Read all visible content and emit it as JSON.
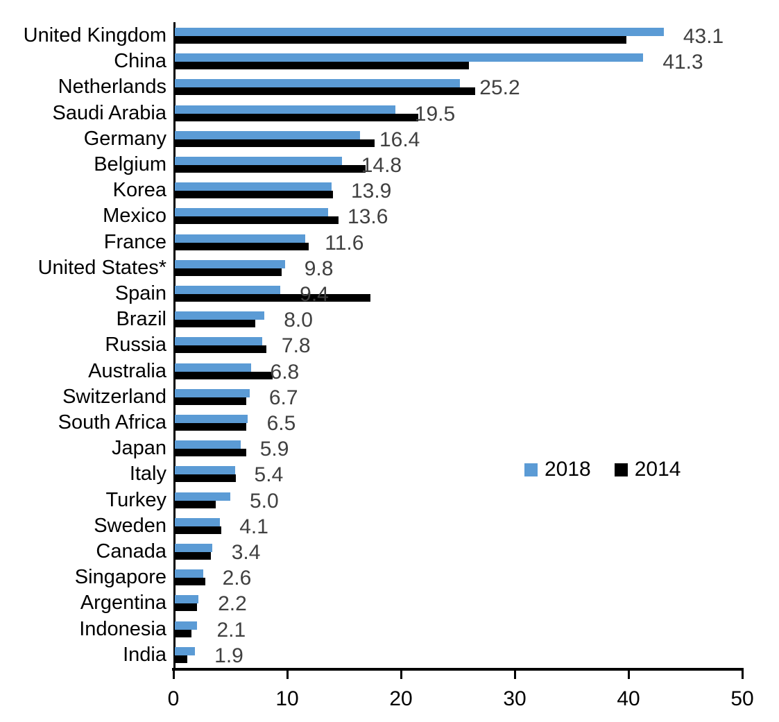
{
  "chart_data": {
    "type": "bar",
    "orientation": "horizontal",
    "title": "",
    "xlabel": "",
    "ylabel": "",
    "xlim": [
      0,
      50
    ],
    "x_ticks": [
      "0",
      "10",
      "20",
      "30",
      "40",
      "50"
    ],
    "grid": false,
    "legend_position": "middle-right",
    "categories": [
      "United Kingdom",
      "China",
      "Netherlands",
      "Saudi Arabia",
      "Germany",
      "Belgium",
      "Korea",
      "Mexico",
      "France",
      "United States*",
      "Spain",
      "Brazil",
      "Russia",
      "Australia",
      "Switzerland",
      "South Africa",
      "Japan",
      "Italy",
      "Turkey",
      "Sweden",
      "Canada",
      "Singapore",
      "Argentina",
      "Indonesia",
      "India"
    ],
    "series": [
      {
        "name": "2018",
        "color": "#5B9BD5",
        "values": [
          43.1,
          41.3,
          25.2,
          19.5,
          16.4,
          14.8,
          13.9,
          13.6,
          11.6,
          9.8,
          9.4,
          8.0,
          7.8,
          6.8,
          6.7,
          6.5,
          5.9,
          5.4,
          5.0,
          4.1,
          3.4,
          2.6,
          2.2,
          2.1,
          1.9
        ]
      },
      {
        "name": "2014",
        "color": "#000000",
        "values": [
          39.8,
          26.0,
          26.5,
          21.5,
          17.7,
          16.9,
          14.0,
          14.5,
          11.9,
          9.5,
          17.3,
          7.2,
          8.2,
          8.7,
          6.4,
          6.4,
          6.4,
          5.5,
          3.7,
          4.2,
          3.3,
          2.8,
          2.1,
          1.6,
          1.2
        ]
      }
    ],
    "data_labels": {
      "attached_to_series": "2018",
      "values": [
        "43.1",
        "41.3",
        "25.2",
        "19.5",
        "16.4",
        "14.8",
        "13.9",
        "13.6",
        "11.6",
        "9.8",
        "9.4",
        "8.0",
        "7.8",
        "6.8",
        "6.7",
        "6.5",
        "5.9",
        "5.4",
        "5.0",
        "4.1",
        "3.4",
        "2.6",
        "2.2",
        "2.1",
        "1.9"
      ]
    },
    "legend": [
      {
        "label": "2018",
        "color": "#5B9BD5"
      },
      {
        "label": "2014",
        "color": "#000000"
      }
    ]
  },
  "colors": {
    "background": "#ffffff",
    "bar_2018": "#5B9BD5",
    "bar_2014": "#000000",
    "value_label": "#404040",
    "axis": "#000000",
    "category_label": "#000000"
  }
}
